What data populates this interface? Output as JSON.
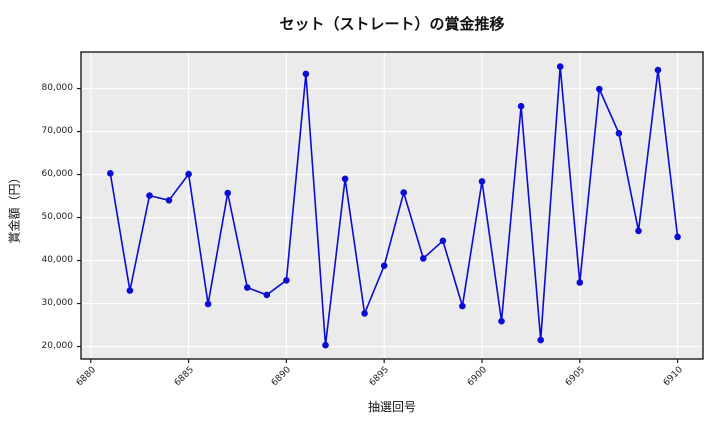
{
  "figure": {
    "title": "セット（ストレート）の賞金推移",
    "xlabel": "抽選回号",
    "ylabel": "賞金額（円）"
  },
  "chart_data": {
    "type": "line",
    "title": "セット（ストレート）の賞金推移",
    "xlabel": "抽選回号",
    "ylabel": "賞金額（円）",
    "x": [
      6881,
      6882,
      6883,
      6884,
      6885,
      6886,
      6887,
      6888,
      6889,
      6890,
      6891,
      6892,
      6893,
      6894,
      6895,
      6896,
      6897,
      6898,
      6899,
      6900,
      6901,
      6902,
      6903,
      6904,
      6905,
      6906,
      6907,
      6908,
      6909,
      6910
    ],
    "y": [
      60300,
      33000,
      55100,
      54000,
      60100,
      29900,
      55700,
      33700,
      32000,
      35400,
      83400,
      20300,
      59000,
      27700,
      38800,
      55800,
      40500,
      44600,
      29400,
      58400,
      25900,
      75900,
      21500,
      85100,
      34900,
      79900,
      69600,
      46900,
      84300,
      45500
    ],
    "x_ticks": [
      6880,
      6885,
      6890,
      6895,
      6900,
      6905,
      6910
    ],
    "y_ticks": [
      20000,
      30000,
      40000,
      50000,
      60000,
      70000,
      80000
    ],
    "xlim": [
      6879.5,
      6911.3
    ],
    "ylim": [
      17100,
      88500
    ],
    "grid": true,
    "legend": null,
    "colors": {
      "line": "#0b0bd6",
      "marker": "#0b0bd6",
      "plot_background": "#ebebeb",
      "gridline": "#ffffff",
      "spine": "#1c1c1c",
      "figure_background": "#ffffff"
    }
  }
}
